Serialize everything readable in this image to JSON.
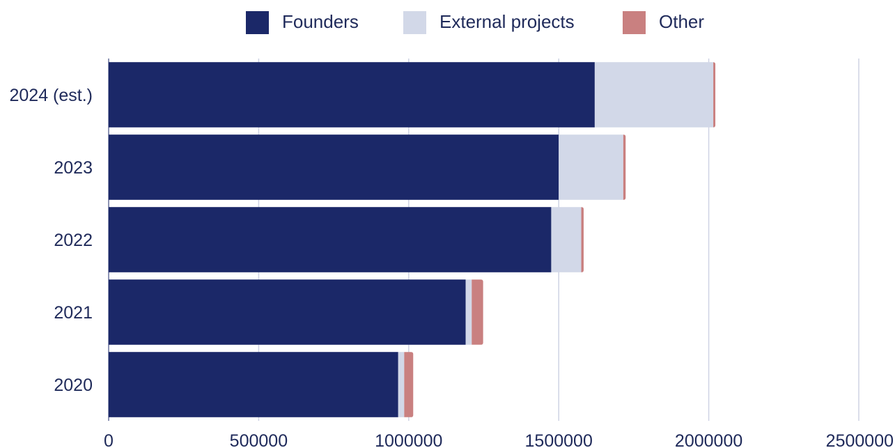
{
  "chart_data": {
    "type": "bar",
    "orientation": "horizontal",
    "stacked": true,
    "categories": [
      "2024 (est.)",
      "2023",
      "2022",
      "2021",
      "2020"
    ],
    "series": [
      {
        "name": "Founders",
        "color": "#1b2868",
        "values": [
          1620000,
          1500000,
          1475000,
          1190000,
          965000
        ]
      },
      {
        "name": "External projects",
        "color": "#d2d8e8",
        "values": [
          395000,
          215000,
          100000,
          20000,
          20000
        ]
      },
      {
        "name": "Other",
        "color": "#c98080",
        "values": [
          7000,
          8000,
          8000,
          38000,
          30000
        ]
      }
    ],
    "xlim": [
      0,
      2500000
    ],
    "x_ticks": [
      "0",
      "500000",
      "1000000",
      "1500000",
      "2000000",
      "2500000"
    ],
    "x_tick_values": [
      0,
      500000,
      1000000,
      1500000,
      2000000,
      2500000
    ],
    "grid": "vertical",
    "legend_position": "top"
  }
}
